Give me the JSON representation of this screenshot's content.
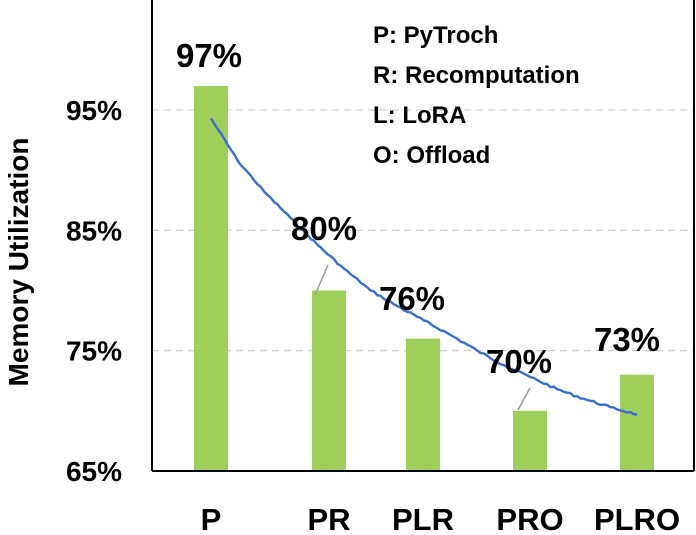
{
  "chart_data": {
    "type": "bar",
    "ylabel": "Memory Utilization",
    "categories": [
      "P",
      "PR",
      "PLR",
      "PRO",
      "PLRO"
    ],
    "values": [
      97,
      80,
      76,
      70,
      73
    ],
    "value_labels": [
      "97%",
      "80%",
      "76%",
      "70%",
      "73%"
    ],
    "ylim": [
      65,
      100
    ],
    "yticks": [
      65,
      75,
      85,
      95
    ],
    "ytick_labels": [
      "65%",
      "75%",
      "85%",
      "95%"
    ],
    "grid": "horizontal dashed",
    "bar_color": "#9dcf5a",
    "trend_color": "#3a6fd0",
    "trend_line": {
      "x": [
        0,
        0.25,
        0.5,
        0.75,
        1,
        1.25,
        1.5,
        1.75,
        2,
        2.25,
        2.5,
        2.75,
        3,
        3.25,
        3.5,
        3.75,
        4
      ],
      "y": [
        94.3,
        90.8,
        88.2,
        86.0,
        83.8,
        81.8,
        80.0,
        78.7,
        77.5,
        76.3,
        75.0,
        73.8,
        72.8,
        71.8,
        71.0,
        70.3,
        69.7
      ]
    },
    "legend": {
      "position": "top-right",
      "items": [
        "P: PyTroch",
        "R: Recomputation",
        "L: LoRA",
        "O: Offload"
      ]
    }
  }
}
